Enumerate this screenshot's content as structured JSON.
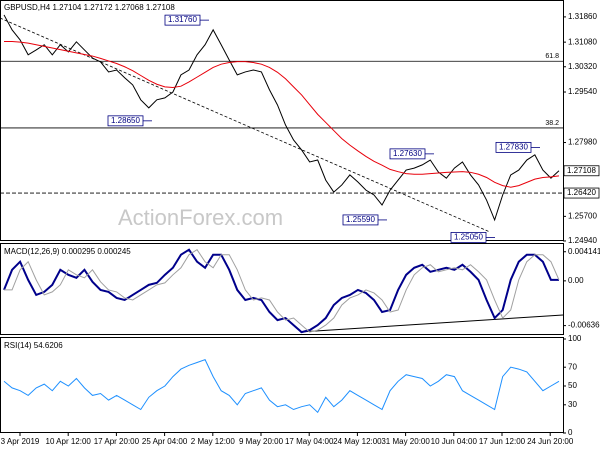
{
  "chart_data": [
    {
      "type": "line",
      "title": "GBPUSD,H4  1.27104 1.27172 1.27068 1.27108",
      "watermark": "ActionForex.com",
      "ylim": [
        1.2497,
        1.3232
      ],
      "yticks": [
        {
          "value": 1.3186,
          "label": "1.31860"
        },
        {
          "value": 1.3108,
          "label": "1.31080"
        },
        {
          "value": 1.3032,
          "label": "1.30320"
        },
        {
          "value": 1.2954,
          "label": "1.29540"
        },
        {
          "value": 1.2798,
          "label": "1.27980"
        },
        {
          "value": 1.257,
          "label": "1.25700"
        },
        {
          "value": 1.2494,
          "label": "1.24940"
        }
      ],
      "levels": [
        {
          "value": 1.3049,
          "label": "61.8"
        },
        {
          "value": 1.2843,
          "label": "38.2"
        }
      ],
      "markers": [
        {
          "value": 1.27108,
          "label": "1.27108"
        },
        {
          "value": 1.2642,
          "label": "1.26420"
        }
      ],
      "annotations": [
        {
          "value": 1.3176,
          "label": "1.31760"
        },
        {
          "value": 1.2865,
          "label": "1.28650"
        },
        {
          "value": 1.2763,
          "label": "1.27630"
        },
        {
          "value": 1.2783,
          "label": "1.27830"
        },
        {
          "value": 1.2559,
          "label": "1.25590"
        },
        {
          "value": 1.2505,
          "label": "1.25050"
        }
      ],
      "series": [
        {
          "color": "#000000",
          "values": [
            1.3192,
            1.3146,
            1.3115,
            1.3069,
            1.3084,
            1.31,
            1.3069,
            1.31,
            1.3078,
            1.3109,
            1.3084,
            1.3059,
            1.3047,
            1.3016,
            1.3022,
            1.2998,
            1.2976,
            1.293,
            1.2905,
            1.293,
            1.2936,
            1.2954,
            1.3007,
            1.3022,
            1.3069,
            1.31,
            1.3146,
            1.31,
            1.3053,
            1.3007,
            1.3016,
            1.3022,
            1.3016,
            1.2961,
            1.2914,
            1.2852,
            1.2806,
            1.2775,
            1.2738,
            1.2744,
            1.2682,
            1.2645,
            1.2667,
            1.2698,
            1.2676,
            1.2651,
            1.2636,
            1.2605,
            1.2651,
            1.2682,
            1.2713,
            1.2719,
            1.2729,
            1.2744,
            1.2707,
            1.2688,
            1.2719,
            1.2738,
            1.2698,
            1.2667,
            1.262,
            1.2559,
            1.2636,
            1.2698,
            1.2713,
            1.2744,
            1.276,
            1.2713,
            1.2688,
            1.2711
          ]
        },
        {
          "color": "#e8000b",
          "values": [
            1.311,
            1.311,
            1.3108,
            1.3105,
            1.31,
            1.3095,
            1.309,
            1.3085,
            1.308,
            1.3075,
            1.307,
            1.3065,
            1.3058,
            1.305,
            1.3042,
            1.3032,
            1.302,
            1.3005,
            1.299,
            1.2978,
            1.297,
            1.2968,
            1.2972,
            1.2985,
            1.3,
            1.3015,
            1.303,
            1.304,
            1.3045,
            1.3048,
            1.3048,
            1.3045,
            1.304,
            1.303,
            1.3015,
            1.2995,
            1.297,
            1.2945,
            1.2915,
            1.2885,
            1.286,
            1.2835,
            1.281,
            1.279,
            1.2772,
            1.2755,
            1.274,
            1.2728,
            1.2715,
            1.2708,
            1.2702,
            1.27,
            1.27,
            1.2702,
            1.2704,
            1.2706,
            1.2707,
            1.2708,
            1.2706,
            1.27,
            1.269,
            1.2675,
            1.2665,
            1.266,
            1.2665,
            1.2675,
            1.2685,
            1.269,
            1.2692,
            1.2695
          ]
        }
      ]
    },
    {
      "type": "line",
      "title": "MACD(12,26,9) 0.000295 0.000245",
      "ylim": [
        -0.0077,
        0.0051
      ],
      "yticks": [
        0.004141,
        {
          "value": 0,
          "label": "0.00"
        },
        -0.006365
      ],
      "series": [
        {
          "color": "#00008b",
          "values": [
            -0.00129,
            0.00157,
            0.00272,
            0.00014,
            -0.002,
            -0.00157,
            -0.00057,
            0.00157,
            0.00086,
            0.00043,
            0.00157,
            -0.00014,
            -0.00129,
            -0.00157,
            -0.00243,
            -0.00272,
            -0.002,
            -0.00129,
            -0.00057,
            -0.00029,
            0.00086,
            0.00186,
            0.00372,
            0.00443,
            0.00272,
            0.00186,
            0.00372,
            0.00372,
            0.00157,
            -0.00129,
            -0.00272,
            -0.00243,
            -0.00272,
            -0.00443,
            -0.00558,
            -0.00529,
            -0.00629,
            -0.00729,
            -0.00701,
            -0.00629,
            -0.00529,
            -0.00343,
            -0.00243,
            -0.002,
            -0.00129,
            -0.00172,
            -0.00272,
            -0.00443,
            -0.00415,
            -0.00129,
            0.00086,
            0.00186,
            0.00229,
            0.00129,
            0.00157,
            0.00186,
            0.00157,
            0.00229,
            0.00129,
            0.00014,
            -0.00272,
            -0.00529,
            -0.00415,
            0.00014,
            0.00272,
            0.00372,
            0.00372,
            0.00272,
            0.00014,
            0.00014
          ]
        },
        {
          "color": "#a0a0a0",
          "values": [
            -0.00129,
            -0.00129,
            0.00157,
            0.00272,
            0.00014,
            -0.002,
            -0.00157,
            -0.00057,
            0.00157,
            0.00086,
            0.00043,
            0.00157,
            -0.00014,
            -0.00129,
            -0.00157,
            -0.00243,
            -0.00272,
            -0.002,
            -0.00129,
            -0.00057,
            -0.00029,
            0.00086,
            0.00186,
            0.00372,
            0.00443,
            0.00272,
            0.00186,
            0.00372,
            0.00372,
            0.00157,
            -0.00129,
            -0.00272,
            -0.00243,
            -0.00272,
            -0.00443,
            -0.00558,
            -0.00529,
            -0.00629,
            -0.00729,
            -0.00701,
            -0.00629,
            -0.00529,
            -0.00343,
            -0.00243,
            -0.002,
            -0.00129,
            -0.00172,
            -0.00272,
            -0.00443,
            -0.00415,
            -0.00129,
            0.00086,
            0.00186,
            0.00229,
            0.00129,
            0.00157,
            0.00186,
            0.00157,
            0.00229,
            0.00129,
            0.00014,
            -0.00272,
            -0.00529,
            -0.00415,
            0.00014,
            0.00272,
            0.00372,
            0.00372,
            0.00272,
            0.00014
          ]
        }
      ]
    },
    {
      "type": "line",
      "title": "RSI(14) 54.6206",
      "ylim": [
        0,
        100
      ],
      "yticks": [
        100,
        70,
        50,
        30,
        0
      ],
      "x_labels": [
        "3 Apr 2019",
        "10 Apr 12:00",
        "17 Apr 20:00",
        "25 Apr 04:00",
        "2 May 12:00",
        "9 May 20:00",
        "17 May 04:00",
        "24 May 12:00",
        "31 May 20:00",
        "10 Jun 04:00",
        "17 Jun 12:00",
        "24 Jun 20:00"
      ],
      "series": [
        {
          "color": "#1e90ff",
          "values": [
            55,
            48,
            45,
            40,
            48,
            52,
            45,
            55,
            50,
            58,
            48,
            40,
            42,
            35,
            40,
            35,
            30,
            25,
            38,
            45,
            50,
            60,
            68,
            72,
            75,
            78,
            60,
            45,
            40,
            30,
            42,
            45,
            48,
            35,
            28,
            30,
            25,
            28,
            30,
            22,
            38,
            28,
            35,
            45,
            40,
            35,
            30,
            25,
            45,
            55,
            62,
            60,
            58,
            50,
            55,
            62,
            60,
            45,
            40,
            35,
            30,
            25,
            60,
            70,
            68,
            65,
            55,
            45,
            50,
            55
          ]
        }
      ]
    }
  ]
}
